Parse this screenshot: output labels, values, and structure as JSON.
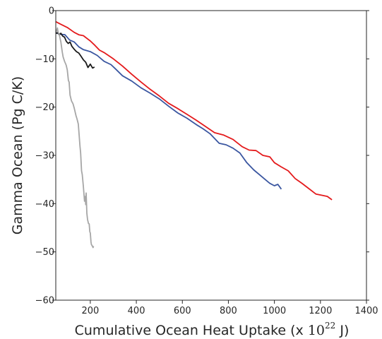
{
  "chart_data": {
    "type": "line",
    "title": "",
    "xlabel": {
      "prefix": "Cumulative Ocean Heat Uptake (x ",
      "base": "10",
      "exponent": "22",
      "suffix": " J)"
    },
    "ylabel": "Gamma Ocean (Pg C/K)",
    "xlim": [
      50,
      1400
    ],
    "ylim": [
      -60,
      0
    ],
    "x_ticks": [
      200,
      400,
      600,
      800,
      1000,
      1200,
      1400
    ],
    "y_ticks": [
      0,
      -10,
      -20,
      -30,
      -40,
      -50,
      -60
    ],
    "x_tick_labels": [
      "200",
      "400",
      "600",
      "800",
      "1000",
      "1200",
      "1400"
    ],
    "y_tick_labels": [
      "0",
      "−10",
      "−20",
      "−30",
      "−40",
      "−50",
      "−60"
    ],
    "grid": false,
    "legend": "none",
    "series": [
      {
        "color": "#e41a1c",
        "x": [
          50,
          70,
          100,
          130,
          150,
          170,
          200,
          220,
          240,
          260,
          300,
          340,
          380,
          420,
          460,
          500,
          540,
          580,
          620,
          660,
          700,
          740,
          780,
          820,
          860,
          890,
          920,
          950,
          980,
          1000,
          1030,
          1060,
          1090,
          1120,
          1150,
          1180,
          1210,
          1230,
          1250
        ],
        "y": [
          -2.3,
          -2.8,
          -3.5,
          -4.5,
          -5,
          -5.2,
          -6.3,
          -7.2,
          -8.2,
          -8.7,
          -10,
          -11.5,
          -13.2,
          -14.8,
          -16.3,
          -17.7,
          -19.2,
          -20.3,
          -21.5,
          -22.7,
          -24,
          -25.3,
          -25.8,
          -26.7,
          -28.2,
          -28.9,
          -29,
          -30,
          -30.3,
          -31.5,
          -32.4,
          -33.2,
          -34.8,
          -35.8,
          -36.9,
          -38,
          -38.3,
          -38.5,
          -39.2
        ]
      },
      {
        "color": "#3a56a0",
        "x": [
          50,
          70,
          90,
          110,
          130,
          150,
          170,
          200,
          230,
          260,
          290,
          310,
          340,
          380,
          420,
          460,
          500,
          540,
          580,
          620,
          660,
          690,
          720,
          760,
          790,
          820,
          850,
          880,
          910,
          940,
          960,
          980,
          1000,
          1015,
          1030
        ],
        "y": [
          -4.6,
          -4.9,
          -5,
          -6.1,
          -6.5,
          -7.5,
          -8.1,
          -8.5,
          -9.3,
          -10.5,
          -11.2,
          -12.1,
          -13.5,
          -14.6,
          -16,
          -17.1,
          -18.3,
          -19.8,
          -21.2,
          -22.3,
          -23.6,
          -24.5,
          -25.5,
          -27.5,
          -27.8,
          -28.5,
          -29.5,
          -31.5,
          -33,
          -34.2,
          -35,
          -35.8,
          -36.3,
          -36,
          -37
        ]
      },
      {
        "color": "#1a1a1a",
        "x": [
          52,
          58,
          65,
          72,
          80,
          88,
          96,
          104,
          112,
          120,
          130,
          140,
          150,
          160,
          170,
          180,
          190,
          200,
          210,
          218
        ],
        "y": [
          -4.8,
          -4.5,
          -5,
          -4.7,
          -5.3,
          -5.5,
          -6.4,
          -6.8,
          -6.5,
          -7.4,
          -8,
          -8.5,
          -8.8,
          -9.5,
          -10.2,
          -10.7,
          -11.8,
          -11.1,
          -11.9,
          -11.7
        ]
      },
      {
        "color": "#a6a6a6",
        "x": [
          50,
          53,
          57,
          60,
          64,
          68,
          72,
          78,
          82,
          88,
          95,
          100,
          105,
          108,
          112,
          118,
          125,
          130,
          138,
          142,
          148,
          152,
          155,
          158,
          160,
          162,
          165,
          170,
          172,
          175,
          178,
          180,
          182,
          185,
          188,
          192,
          195,
          198,
          200,
          203,
          205,
          208,
          210,
          212,
          214
        ],
        "y": [
          -4.5,
          -4.2,
          -3.6,
          -4.5,
          -4.8,
          -5.6,
          -6.5,
          -8.5,
          -9.6,
          -10.5,
          -11.3,
          -12.3,
          -14.5,
          -14.8,
          -17.5,
          -18.7,
          -19.3,
          -20.2,
          -21.8,
          -22.4,
          -23.5,
          -26,
          -28,
          -29.5,
          -31.5,
          -33.2,
          -34,
          -36.5,
          -37.8,
          -39.5,
          -38.5,
          -40.2,
          -37.8,
          -42,
          -43.3,
          -44.1,
          -44.2,
          -45.8,
          -46.1,
          -48,
          -48.5,
          -48.7,
          -48.9,
          -49.1,
          -48.8
        ]
      }
    ]
  }
}
